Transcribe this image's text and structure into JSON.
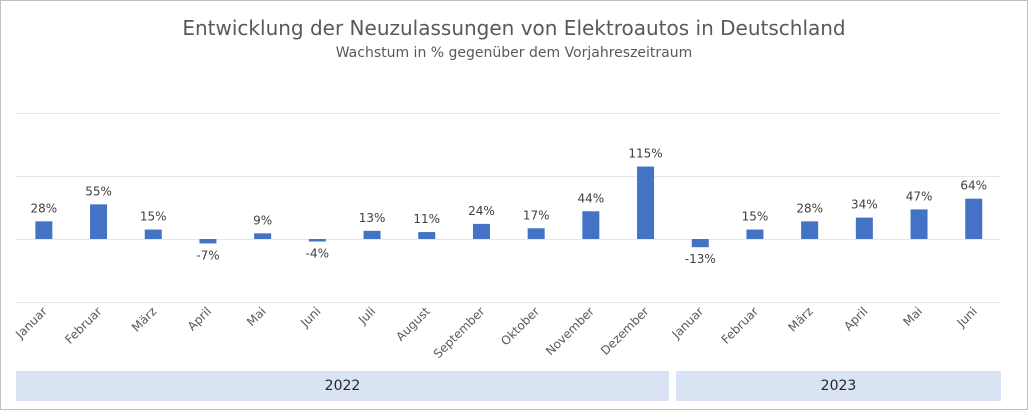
{
  "chart_data": {
    "type": "bar",
    "title": "Entwicklung der Neuzulassungen von Elektroautos in Deutschland",
    "subtitle": "Wachstum in % gegenüber  dem Vorjahreszeitraum",
    "categories": [
      "Januar",
      "Februar",
      "März",
      "April",
      "Mai",
      "Juni",
      "Juli",
      "August",
      "September",
      "Oktober",
      "November",
      "Dezember",
      "Januar",
      "Februar",
      "März",
      "April",
      "Mai",
      "Juni"
    ],
    "values": [
      28,
      55,
      15,
      -7,
      9,
      -4,
      13,
      11,
      24,
      17,
      44,
      115,
      -13,
      15,
      28,
      34,
      47,
      64
    ],
    "value_labels": [
      "28%",
      "55%",
      "15%",
      "-7%",
      "9%",
      "-4%",
      "13%",
      "11%",
      "24%",
      "17%",
      "44%",
      "115%",
      "-13%",
      "15%",
      "28%",
      "34%",
      "47%",
      "64%"
    ],
    "groups": [
      {
        "label": "2022",
        "count": 12
      },
      {
        "label": "2023",
        "count": 6
      }
    ],
    "ylim": [
      -100,
      200
    ],
    "grid": true,
    "bar_color": "#4472c4",
    "grid_color": "#e7e7e7",
    "band_color": "#dae3f3"
  }
}
